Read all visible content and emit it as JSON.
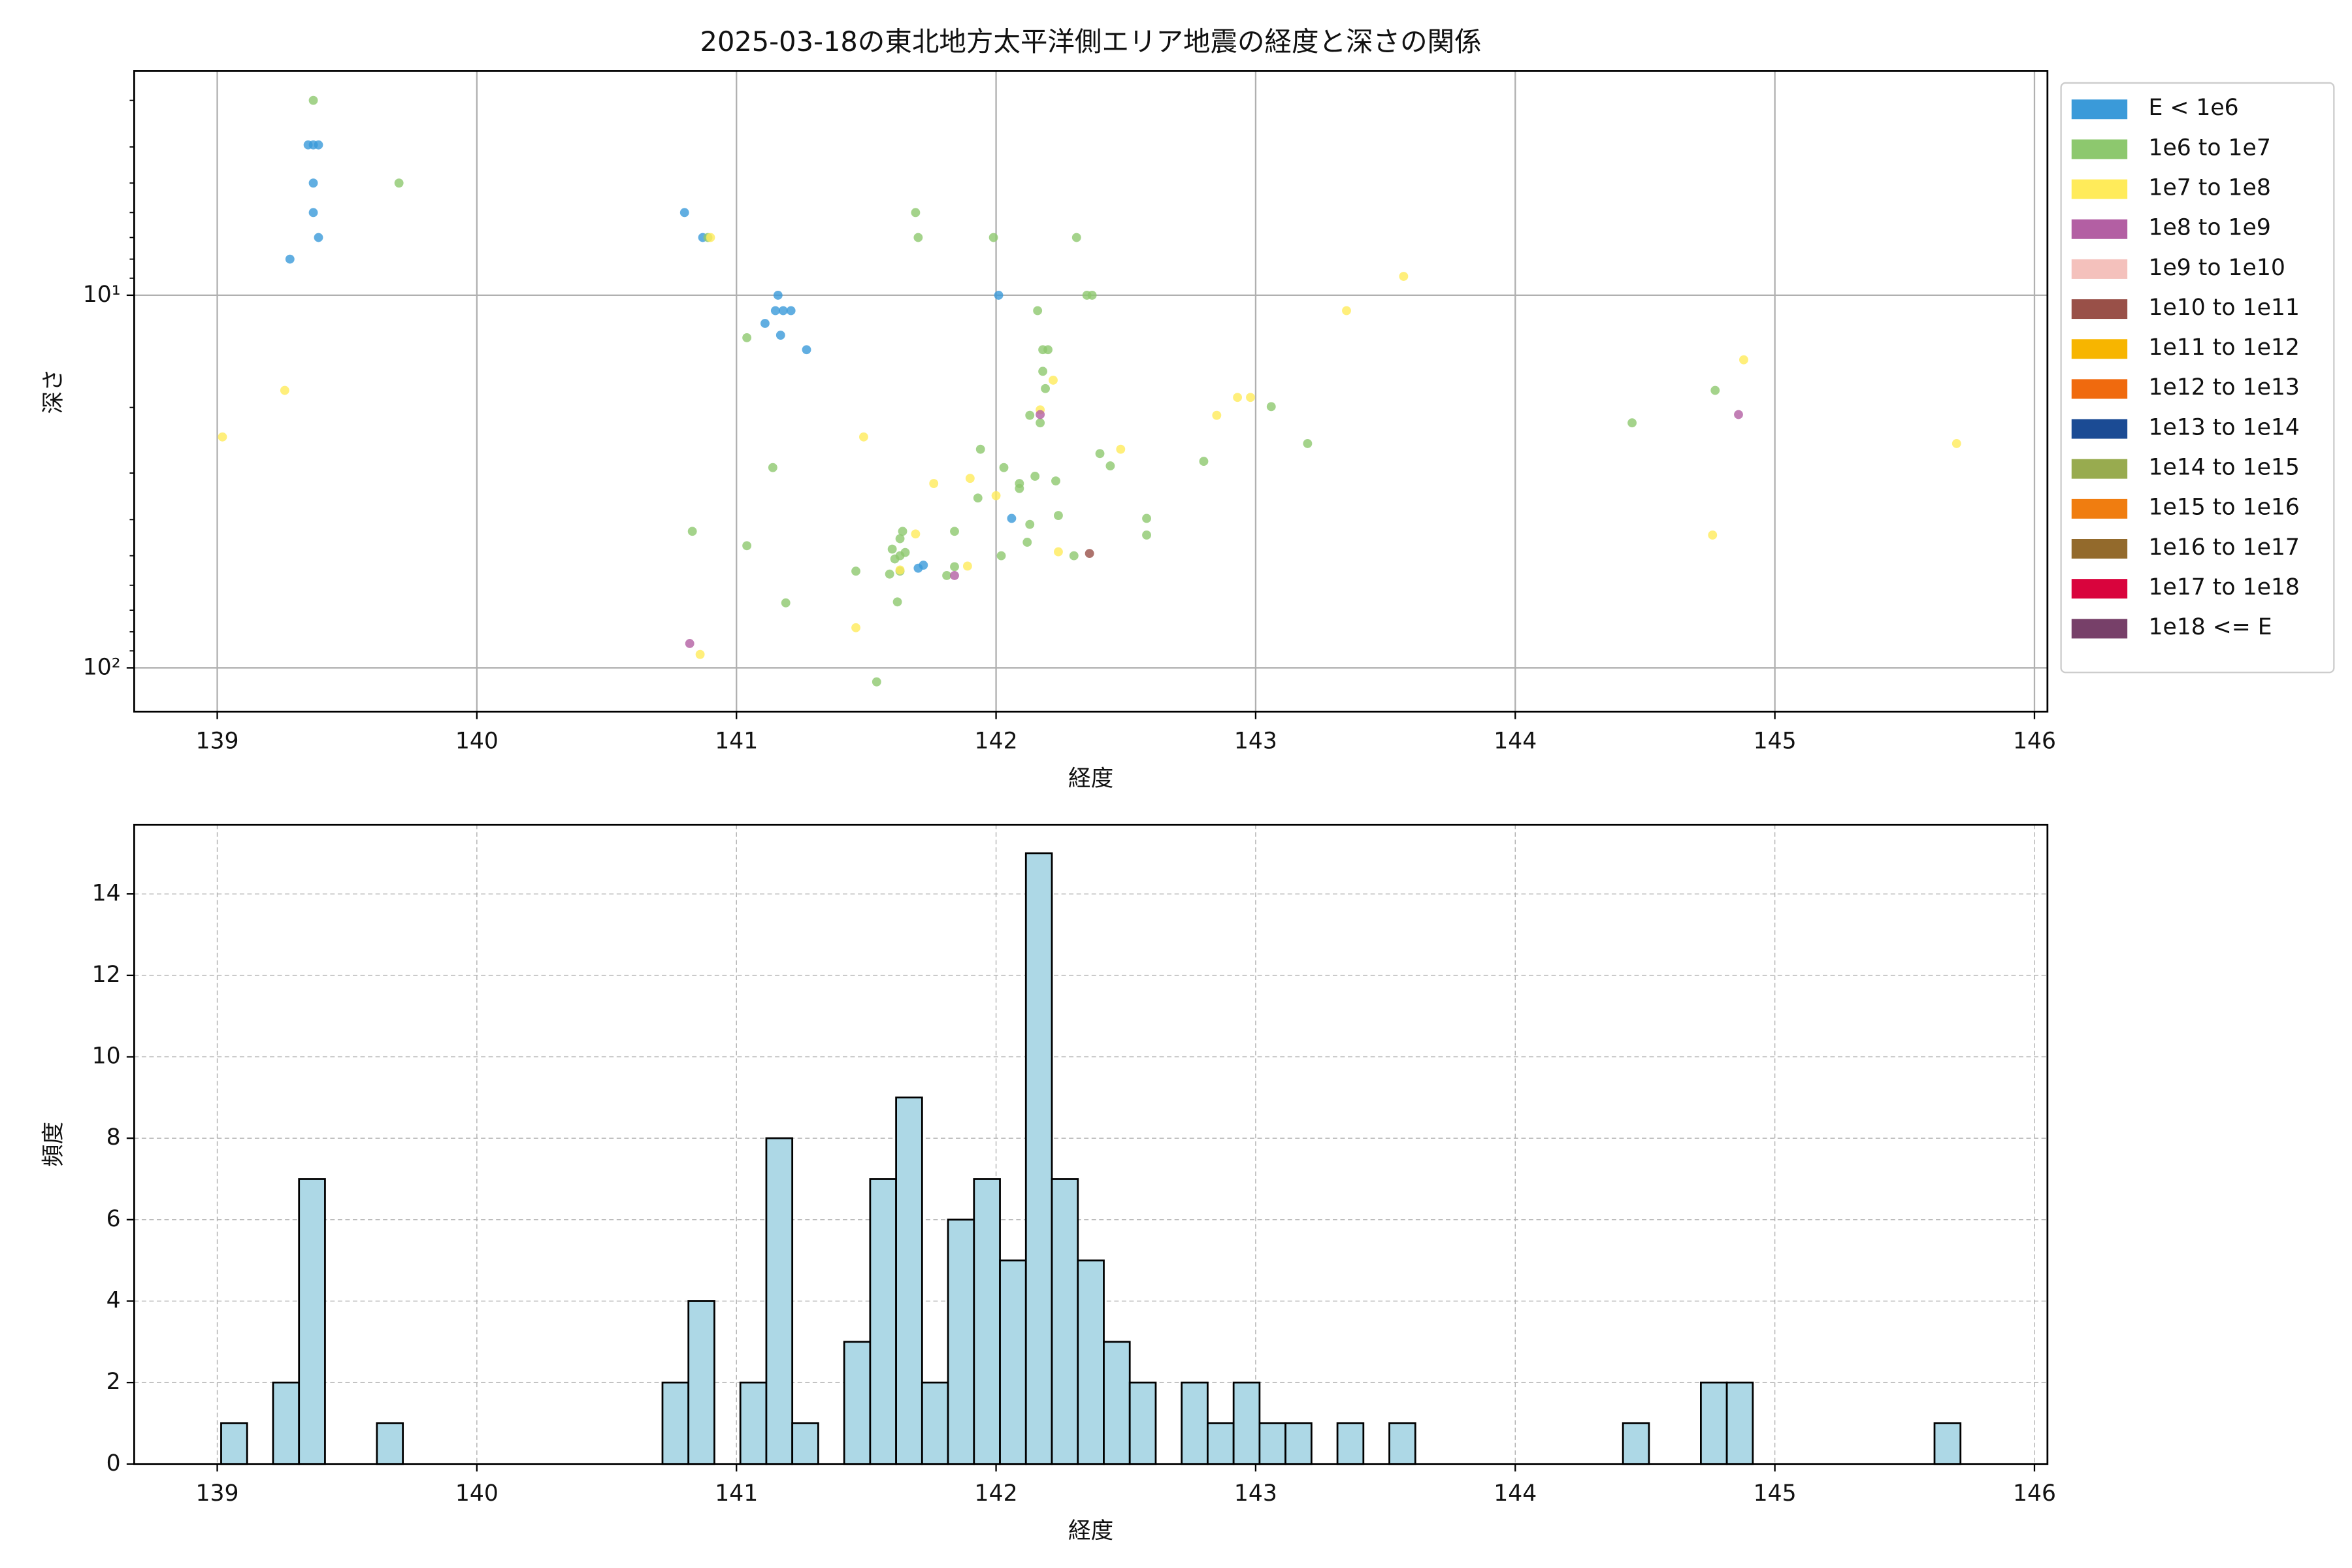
{
  "chart_data": [
    {
      "type": "scatter",
      "title": "2025-03-18の東北地方太平洋側エリア地震の経度と深さの関係",
      "x_label": "経度",
      "y_label": "深さ",
      "xlim": [
        138.68,
        146.05
      ],
      "xticks": [
        139,
        140,
        141,
        142,
        143,
        144,
        145,
        146
      ],
      "ylim": [
        2.5,
        131
      ],
      "yscale": "log",
      "y_inverted": true,
      "yticks": [
        {
          "value": 10,
          "label": "10¹"
        },
        {
          "value": 100,
          "label": "10²"
        }
      ],
      "yminor_ticks": [
        3,
        4,
        5,
        6,
        7,
        8,
        9,
        20,
        30,
        40,
        50,
        60,
        70,
        80,
        90
      ],
      "grid": true,
      "legend": "outside right",
      "series": [
        {
          "name": "E < 1e6",
          "color": "#3a9ad9",
          "x": [
            139.35,
            139.37,
            139.39,
            139.37,
            139.37,
            139.39,
            139.28,
            140.8,
            140.87,
            141.16,
            141.15,
            141.18,
            141.21,
            141.11,
            141.17,
            141.27,
            142.01,
            142.06,
            141.72,
            141.7
          ],
          "y": [
            3.95,
            3.95,
            3.95,
            5.0,
            6.0,
            7.0,
            8.0,
            6.0,
            7.0,
            10,
            11,
            11,
            11,
            11.9,
            12.8,
            14,
            10,
            39.7,
            53,
            54
          ]
        },
        {
          "name": "1e6 to 1e7",
          "color": "#8dc86e",
          "x": [
            139.37,
            139.7,
            141.69,
            141.7,
            141.99,
            142.31,
            140.89,
            142.35,
            142.37,
            142.16,
            142.18,
            142.2,
            142.18,
            142.19,
            142.17,
            142.13,
            143.06,
            143.2,
            142.8,
            144.45,
            144.77,
            141.94,
            142.03,
            142.15,
            142.23,
            142.09,
            142.09,
            141.93,
            141.14,
            142.4,
            142.44,
            142.24,
            142.58,
            142.58,
            142.13,
            142.12,
            141.84,
            141.64,
            141.63,
            141.6,
            141.61,
            141.63,
            141.65,
            141.59,
            141.63,
            140.83,
            141.04,
            142.02,
            142.3,
            141.84,
            141.81,
            141.46,
            141.19,
            141.62,
            141.54,
            141.04
          ],
          "y": [
            3.0,
            5.0,
            6.0,
            7.0,
            7.0,
            7.0,
            7.0,
            10,
            10,
            11,
            14,
            14,
            16,
            17.8,
            22,
            21,
            19.9,
            25,
            27.9,
            22,
            18,
            25.9,
            29,
            30.6,
            31.5,
            32,
            33,
            35,
            29,
            26.6,
            28.7,
            39,
            39.7,
            44,
            41.2,
            46,
            43,
            43,
            45,
            48,
            51,
            50,
            49,
            56,
            55,
            43,
            47,
            50,
            50,
            53.5,
            56.5,
            55,
            66.9,
            66.5,
            109,
            13
          ]
        },
        {
          "name": "1e7 to 1e8",
          "color": "#ffeb5a",
          "x": [
            139.02,
            139.26,
            140.9,
            143.57,
            143.35,
            144.88,
            145.7,
            142.85,
            142.93,
            142.98,
            142.22,
            142.17,
            141.49,
            142.48,
            141.76,
            141.9,
            142.0,
            141.69,
            142.24,
            141.63,
            141.89,
            141.46,
            140.86,
            144.76
          ],
          "y": [
            24,
            18,
            7.0,
            8.9,
            11,
            14.9,
            25,
            21,
            18.8,
            18.8,
            16.9,
            20.3,
            24,
            25.9,
            32,
            31,
            34.5,
            43.7,
            48.8,
            54.6,
            53.3,
            78,
            92,
            44
          ]
        },
        {
          "name": "1e8 to 1e9",
          "color": "#b35fa3",
          "x": [
            142.17,
            144.86,
            141.84,
            140.82
          ],
          "y": [
            20.9,
            20.9,
            56.5,
            86
          ]
        },
        {
          "name": "1e9 to 1e10",
          "color": "#f4c1bc",
          "x": [],
          "y": []
        },
        {
          "name": "1e10 to 1e11",
          "color": "#995048",
          "x": [
            142.36
          ],
          "y": [
            49.3
          ]
        },
        {
          "name": "1e11 to 1e12",
          "color": "#f7b500",
          "x": [],
          "y": []
        },
        {
          "name": "1e12 to 1e13",
          "color": "#f06a0e",
          "x": [],
          "y": []
        },
        {
          "name": "1e13 to 1e14",
          "color": "#1b4b94",
          "x": [],
          "y": []
        },
        {
          "name": "1e14 to 1e15",
          "color": "#98ab4f",
          "x": [],
          "y": []
        },
        {
          "name": "1e15 to 1e16",
          "color": "#f07d10",
          "x": [],
          "y": []
        },
        {
          "name": "1e16 to 1e17",
          "color": "#936a2c",
          "x": [],
          "y": []
        },
        {
          "name": "1e17 to 1e18",
          "color": "#d9043d",
          "x": [],
          "y": []
        },
        {
          "name": "1e18 <= E",
          "color": "#774069",
          "x": [],
          "y": []
        }
      ]
    },
    {
      "type": "histogram",
      "x_label": "経度",
      "y_label": "頻度",
      "xlim": [
        138.68,
        146.05
      ],
      "xticks": [
        139,
        140,
        141,
        142,
        143,
        144,
        145,
        146
      ],
      "ylim": [
        0,
        15.7
      ],
      "yticks": [
        0,
        2,
        4,
        6,
        8,
        10,
        12,
        14
      ],
      "grid": true,
      "grid_style": "dashed",
      "color": "#add8e6",
      "edgecolor": "#000000",
      "bins": [
        139.015,
        139.115,
        139.215,
        139.315,
        139.415,
        139.515,
        139.615,
        139.715,
        139.815,
        139.915,
        140.015,
        140.115,
        140.215,
        140.315,
        140.415,
        140.515,
        140.615,
        140.715,
        140.815,
        140.915,
        141.015,
        141.115,
        141.215,
        141.315,
        141.415,
        141.515,
        141.615,
        141.715,
        141.815,
        141.915,
        142.015,
        142.115,
        142.215,
        142.315,
        142.415,
        142.515,
        142.615,
        142.715,
        142.815,
        142.915,
        143.015,
        143.115,
        143.215,
        143.315,
        143.415,
        143.515,
        143.615,
        143.715,
        143.815,
        143.915,
        144.015,
        144.115,
        144.215,
        144.315,
        144.415,
        144.515,
        144.615,
        144.715,
        144.815,
        144.915,
        145.015,
        145.115,
        145.215,
        145.315,
        145.415,
        145.515,
        145.615,
        145.715
      ],
      "counts": [
        1,
        0,
        2,
        7,
        0,
        0,
        1,
        0,
        0,
        0,
        0,
        0,
        0,
        0,
        0,
        0,
        0,
        2,
        4,
        0,
        2,
        8,
        1,
        0,
        3,
        7,
        9,
        2,
        6,
        7,
        5,
        15,
        7,
        5,
        3,
        2,
        0,
        2,
        1,
        2,
        1,
        1,
        0,
        1,
        0,
        1,
        0,
        0,
        0,
        0,
        0,
        0,
        0,
        0,
        1,
        0,
        0,
        2,
        2,
        0,
        0,
        0,
        0,
        0,
        0,
        0,
        1
      ]
    }
  ]
}
